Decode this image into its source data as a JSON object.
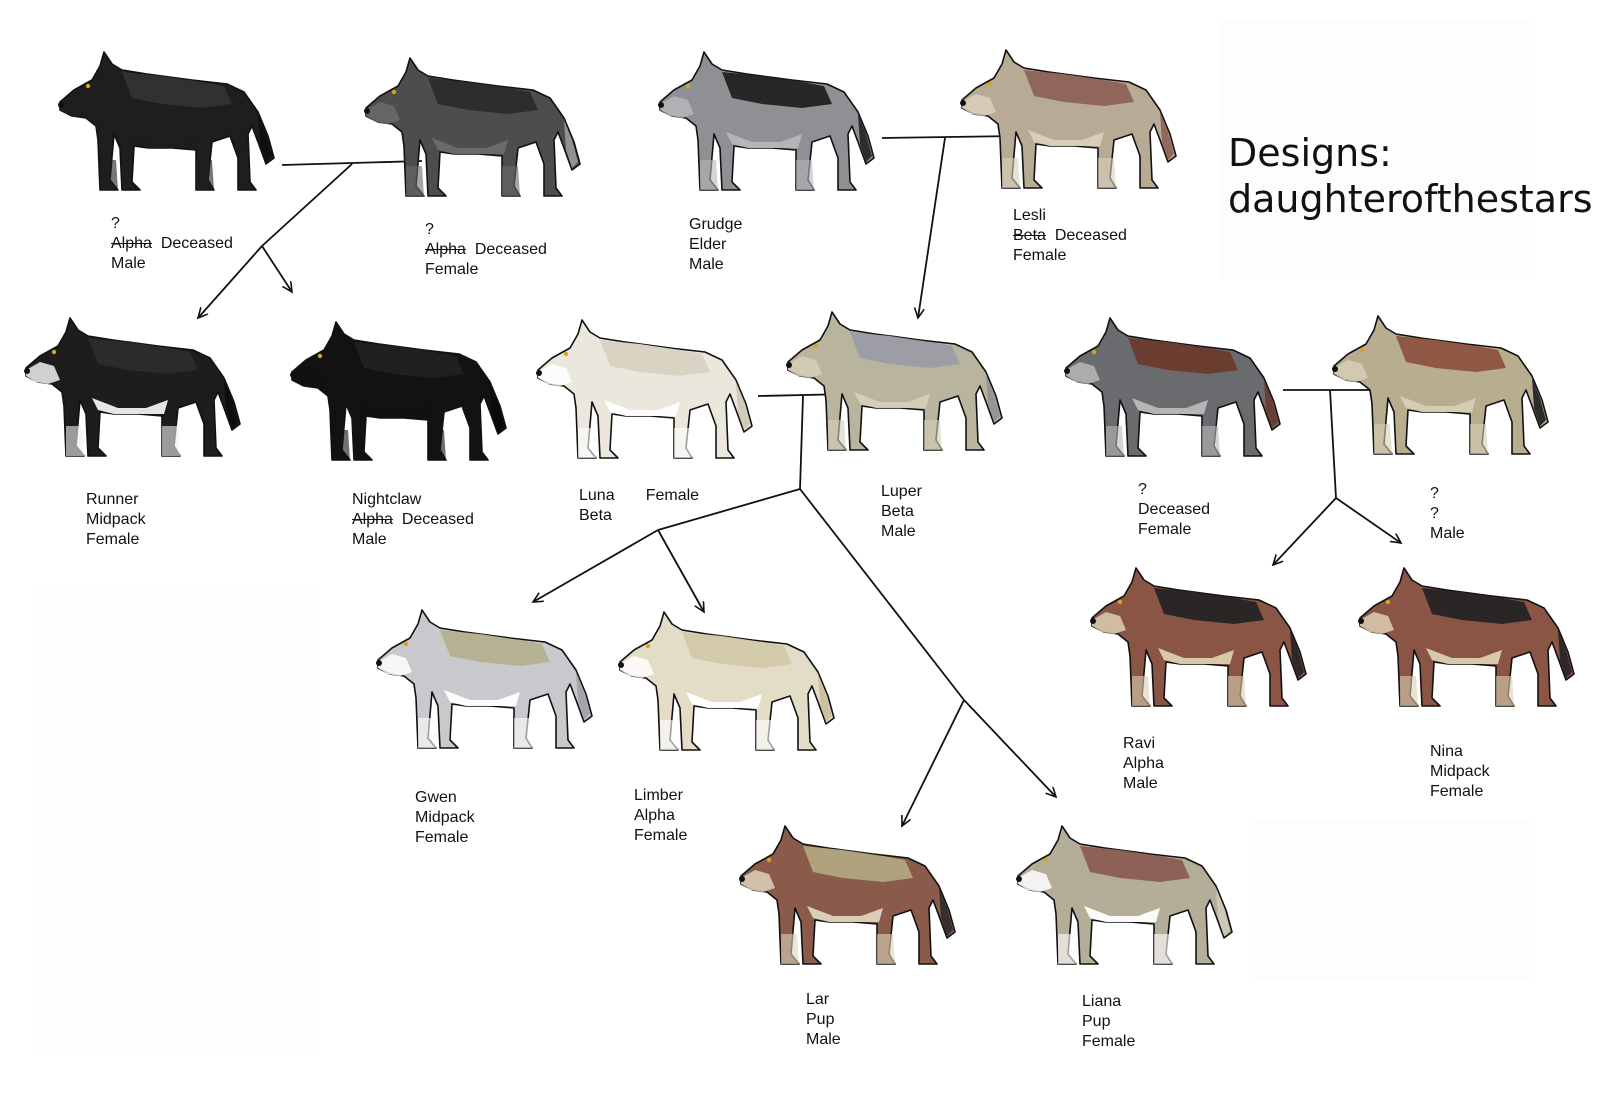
{
  "title": {
    "line1": "Designs:",
    "line2": "daughterofthestars"
  },
  "wolves": {
    "w1": {
      "colors": {
        "base": "#1e1e1e",
        "secondary": "#333333",
        "belly": "#1e1e1e",
        "accent": "#0d0d0d"
      }
    },
    "w2": {
      "colors": {
        "base": "#4d4d4d",
        "secondary": "#2b2b2b",
        "belly": "#6b6b6b",
        "accent": "#9a9a9a"
      }
    },
    "w3": {
      "colors": {
        "base": "#8f9094",
        "secondary": "#222222",
        "belly": "#b6b7bb",
        "accent": "#222222"
      }
    },
    "w4": {
      "colors": {
        "base": "#b8ab96",
        "secondary": "#8d6156",
        "belly": "#d9d0bd",
        "accent": "#8d6156"
      }
    },
    "w5": {
      "colors": {
        "base": "#1d1d1d",
        "secondary": "#2c2c2c",
        "belly": "#f0f0f0",
        "accent": "#0d0d0d"
      }
    },
    "w6": {
      "colors": {
        "base": "#121212",
        "secondary": "#222222",
        "belly": "#121212",
        "accent": "#0a0a0a"
      }
    },
    "w7": {
      "colors": {
        "base": "#ebe7dc",
        "secondary": "#d8d2c2",
        "belly": "#ffffff",
        "accent": "#cfc8b6"
      }
    },
    "w8": {
      "colors": {
        "base": "#b9b49d",
        "secondary": "#9a9ca5",
        "belly": "#d5cfb9",
        "accent": "#8f919b"
      }
    },
    "w9": {
      "colors": {
        "base": "#6a6b6e",
        "secondary": "#6b3a2c",
        "belly": "#b9b9b9",
        "accent": "#6b3a2c"
      }
    },
    "w10": {
      "colors": {
        "base": "#b9ad90",
        "secondary": "#8c5240",
        "belly": "#d7ceb6",
        "accent": "#1e1e1e"
      }
    },
    "w11": {
      "colors": {
        "base": "#c8c9cc",
        "secondary": "#b4b18f",
        "belly": "#ffffff",
        "accent": "#9fa1a6"
      }
    },
    "w12": {
      "colors": {
        "base": "#e3ddc8",
        "secondary": "#d2c8a8",
        "belly": "#ffffff",
        "accent": "#c9bf9d"
      }
    },
    "w13": {
      "colors": {
        "base": "#8a5a4b",
        "secondary": "#b2a67f",
        "belly": "#ddd4bb",
        "accent": "#2a2a2a"
      }
    },
    "w14": {
      "colors": {
        "base": "#b4ae98",
        "secondary": "#8c5d52",
        "belly": "#ffffff",
        "accent": "#cfcab8"
      }
    },
    "w15": {
      "colors": {
        "base": "#8b5546",
        "secondary": "#242424",
        "belly": "#dccfb0",
        "accent": "#242424"
      }
    },
    "w16": {
      "colors": {
        "base": "#8b5546",
        "secondary": "#242424",
        "belly": "#dccfb0",
        "accent": "#242424"
      }
    }
  },
  "labels": {
    "l1": {
      "line1": "?",
      "line2_strike": "Alpha",
      "line2": "Deceased",
      "line3": "Male"
    },
    "l2": {
      "line1": "?",
      "line2_strike": "Alpha",
      "line2": "Deceased",
      "line3": "Female"
    },
    "l3": {
      "line1": "Grudge",
      "line2": "Elder",
      "line3": "Male"
    },
    "l4": {
      "line1": "Lesli",
      "line2_strike": "Beta",
      "line2": "Deceased",
      "line3": "Female"
    },
    "l5": {
      "line1": "Runner",
      "line2": "Midpack",
      "line3": "Female"
    },
    "l6": {
      "line1": "Nightclaw",
      "line2_strike": "Alpha",
      "line2": "Deceased",
      "line3": "Male"
    },
    "l7": {
      "line1": "Luna",
      "line1b": "Female",
      "line2": "Beta"
    },
    "l8": {
      "line1": "Luper",
      "line2": "Beta",
      "line3": "Male"
    },
    "l9": {
      "line1": "?",
      "line2": "Deceased",
      "line3": "Female"
    },
    "l10": {
      "line1": "?",
      "line2": "?",
      "line3": "Male"
    },
    "l11": {
      "line1": "Gwen",
      "line2": "Midpack",
      "line3": "Female"
    },
    "l12": {
      "line1": "Limber",
      "line2": "Alpha",
      "line3": "Female"
    },
    "l13": {
      "line1": "Lar",
      "line2": "Pup",
      "line3": "Male"
    },
    "l14": {
      "line1": "Liana",
      "line2": "Pup",
      "line3": "Female"
    },
    "l15": {
      "line1": "Ravi",
      "line2": "Alpha",
      "line3": "Male"
    },
    "l16": {
      "line1": "Nina",
      "line2": "Midpack",
      "line3": "Female"
    }
  }
}
